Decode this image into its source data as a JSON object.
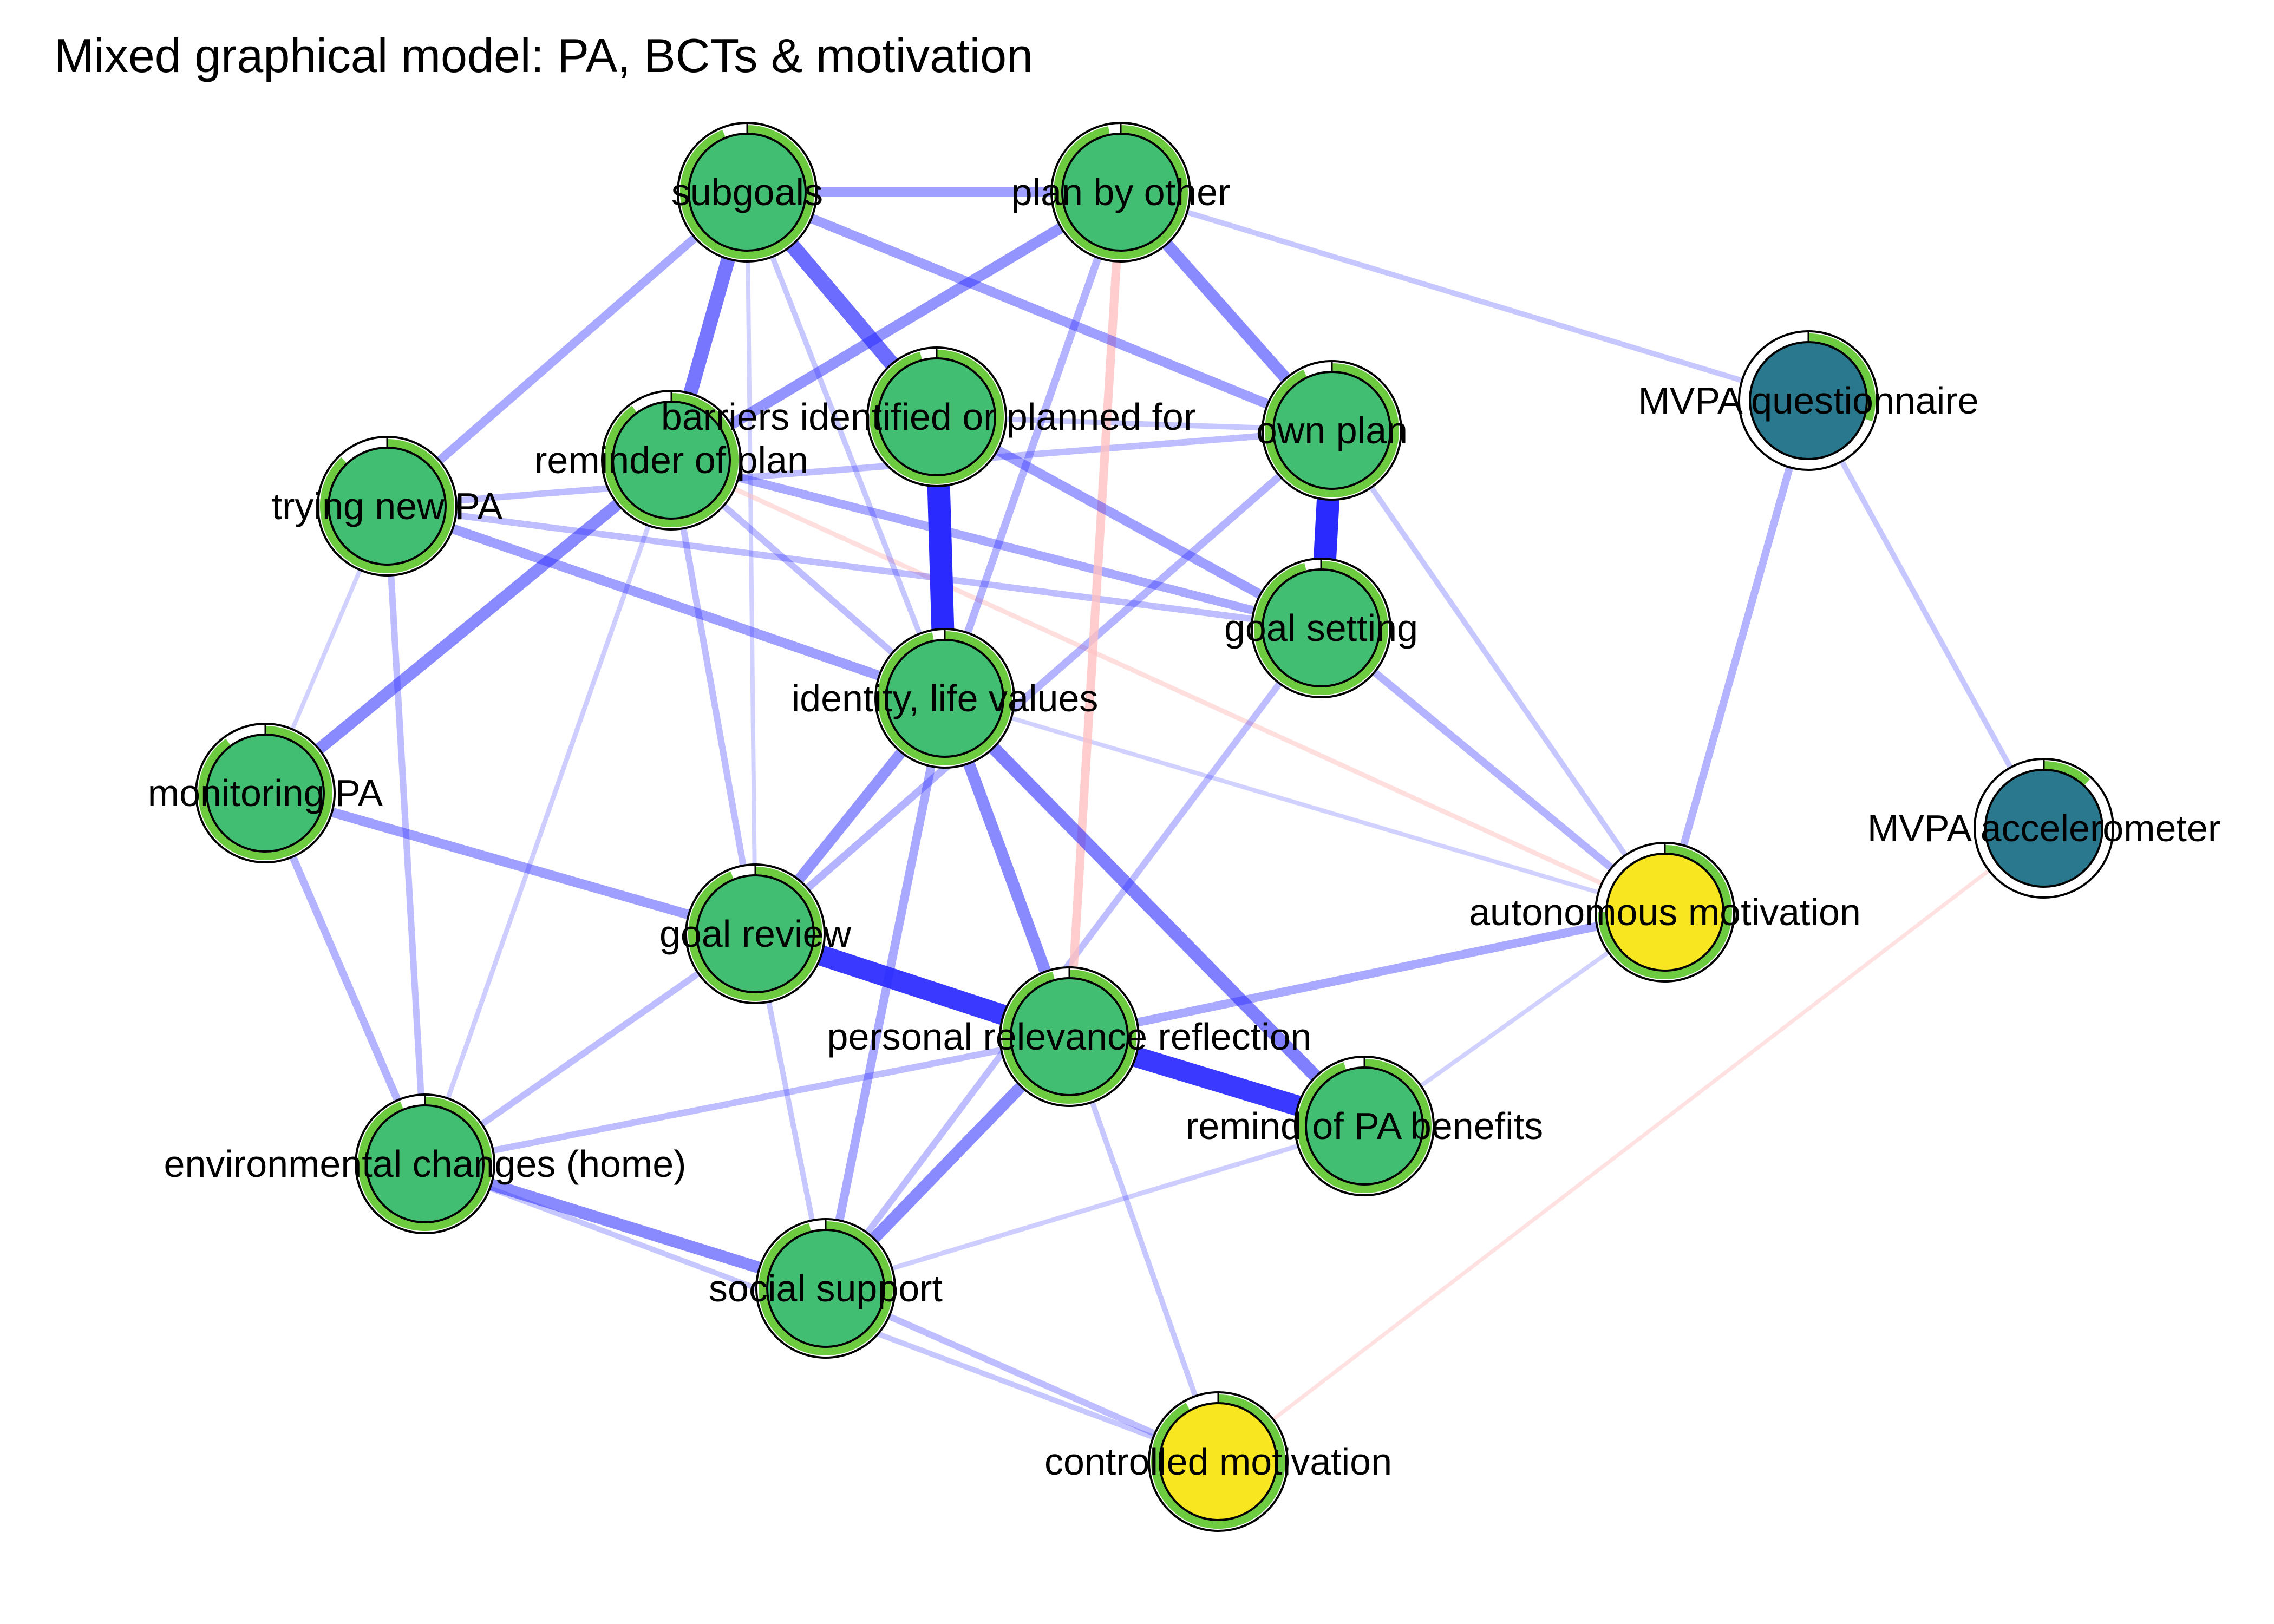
{
  "title": "Mixed graphical model: PA, BCTs & motivation",
  "colors": {
    "bct_node": "#41BE71",
    "motivation_node": "#F7E620",
    "mvpa_node": "#2A788E",
    "predictability_ring": "#6CCB3F",
    "positive_edge": "#2A2AFF",
    "negative_edge": "#FFC0C0"
  },
  "nodes": [
    {
      "id": "subgoals",
      "label": "subgoals",
      "group": "bct",
      "predictability": 0.94
    },
    {
      "id": "plan_by_other",
      "label": "plan by other",
      "group": "bct",
      "predictability": 0.97
    },
    {
      "id": "barriers",
      "label": "barriers identified or planned for",
      "group": "bct",
      "predictability": 0.96
    },
    {
      "id": "own_plan",
      "label": "own plan",
      "group": "bct",
      "predictability": 0.93
    },
    {
      "id": "reminder_of_plan",
      "label": "reminder of plan",
      "group": "bct",
      "predictability": 0.9
    },
    {
      "id": "trying_new_pa",
      "label": "trying new PA",
      "group": "bct",
      "predictability": 0.88
    },
    {
      "id": "goal_setting",
      "label": "goal setting",
      "group": "bct",
      "predictability": 0.96
    },
    {
      "id": "identity",
      "label": "identity, life values",
      "group": "bct",
      "predictability": 0.97
    },
    {
      "id": "monitoring_pa",
      "label": "monitoring PA",
      "group": "bct",
      "predictability": 0.9
    },
    {
      "id": "goal_review",
      "label": "goal review",
      "group": "bct",
      "predictability": 0.94
    },
    {
      "id": "personal_relevance",
      "label": "personal relevance reflection",
      "group": "bct",
      "predictability": 0.96
    },
    {
      "id": "remind_benefits",
      "label": "remind of PA benefits",
      "group": "bct",
      "predictability": 0.95
    },
    {
      "id": "env_changes",
      "label": "environmental changes (home)",
      "group": "bct",
      "predictability": 0.94
    },
    {
      "id": "social_support",
      "label": "social support",
      "group": "bct",
      "predictability": 0.96
    },
    {
      "id": "controlled_motivation",
      "label": "controlled motivation",
      "group": "motivation",
      "predictability": 0.92
    },
    {
      "id": "autonomous_motivation",
      "label": "autonomous motivation",
      "group": "motivation",
      "predictability": 0.75
    },
    {
      "id": "mvpa_questionnaire",
      "label": "MVPA questionnaire",
      "group": "mvpa",
      "predictability": 0.3
    },
    {
      "id": "mvpa_accelerometer",
      "label": "MVPA accelerometer",
      "group": "mvpa",
      "predictability": 0.12
    }
  ],
  "edges": [
    {
      "from": "goal_review",
      "to": "personal_relevance",
      "sign": "positive",
      "strength": 0.85
    },
    {
      "from": "personal_relevance",
      "to": "remind_benefits",
      "sign": "positive",
      "strength": 0.85
    },
    {
      "from": "own_plan",
      "to": "goal_setting",
      "sign": "positive",
      "strength": 0.95
    },
    {
      "from": "barriers",
      "to": "identity",
      "sign": "positive",
      "strength": 0.95
    },
    {
      "from": "subgoals",
      "to": "barriers",
      "sign": "positive",
      "strength": 0.6
    },
    {
      "from": "subgoals",
      "to": "reminder_of_plan",
      "sign": "positive",
      "strength": 0.55
    },
    {
      "from": "identity",
      "to": "remind_benefits",
      "sign": "positive",
      "strength": 0.5
    },
    {
      "from": "reminder_of_plan",
      "to": "monitoring_pa",
      "sign": "positive",
      "strength": 0.45
    },
    {
      "from": "plan_by_other",
      "to": "own_plan",
      "sign": "positive",
      "strength": 0.45
    },
    {
      "from": "env_changes",
      "to": "social_support",
      "sign": "positive",
      "strength": 0.45
    },
    {
      "from": "personal_relevance",
      "to": "social_support",
      "sign": "positive",
      "strength": 0.45
    },
    {
      "from": "identity",
      "to": "personal_relevance",
      "sign": "positive",
      "strength": 0.45
    },
    {
      "from": "subgoals",
      "to": "plan_by_other",
      "sign": "positive",
      "strength": 0.35
    },
    {
      "from": "plan_by_other",
      "to": "reminder_of_plan",
      "sign": "positive",
      "strength": 0.4
    },
    {
      "from": "subgoals",
      "to": "own_plan",
      "sign": "positive",
      "strength": 0.35
    },
    {
      "from": "trying_new_pa",
      "to": "identity",
      "sign": "positive",
      "strength": 0.35
    },
    {
      "from": "barriers",
      "to": "goal_setting",
      "sign": "positive",
      "strength": 0.35
    },
    {
      "from": "identity",
      "to": "goal_review",
      "sign": "positive",
      "strength": 0.4
    },
    {
      "from": "monitoring_pa",
      "to": "goal_review",
      "sign": "positive",
      "strength": 0.35
    },
    {
      "from": "personal_relevance",
      "to": "autonomous_motivation",
      "sign": "positive",
      "strength": 0.3
    },
    {
      "from": "reminder_of_plan",
      "to": "goal_setting",
      "sign": "positive",
      "strength": 0.3
    },
    {
      "from": "subgoals",
      "to": "trying_new_pa",
      "sign": "positive",
      "strength": 0.3
    },
    {
      "from": "identity",
      "to": "social_support",
      "sign": "positive",
      "strength": 0.3
    },
    {
      "from": "own_plan",
      "to": "goal_review",
      "sign": "positive",
      "strength": 0.25
    },
    {
      "from": "goal_setting",
      "to": "autonomous_motivation",
      "sign": "positive",
      "strength": 0.25
    },
    {
      "from": "mvpa_questionnaire",
      "to": "autonomous_motivation",
      "sign": "positive",
      "strength": 0.25
    },
    {
      "from": "mvpa_questionnaire",
      "to": "mvpa_accelerometer",
      "sign": "positive",
      "strength": 0.15
    },
    {
      "from": "plan_by_other",
      "to": "mvpa_questionnaire",
      "sign": "positive",
      "strength": 0.15
    },
    {
      "from": "plan_by_other",
      "to": "identity",
      "sign": "positive",
      "strength": 0.25
    },
    {
      "from": "plan_by_other",
      "to": "personal_relevance",
      "sign": "negative",
      "strength": 0.3
    },
    {
      "from": "trying_new_pa",
      "to": "own_plan",
      "sign": "positive",
      "strength": 0.2
    },
    {
      "from": "trying_new_pa",
      "to": "goal_setting",
      "sign": "positive",
      "strength": 0.2
    },
    {
      "from": "trying_new_pa",
      "to": "env_changes",
      "sign": "positive",
      "strength": 0.2
    },
    {
      "from": "trying_new_pa",
      "to": "monitoring_pa",
      "sign": "positive",
      "strength": 0.1
    },
    {
      "from": "monitoring_pa",
      "to": "env_changes",
      "sign": "positive",
      "strength": 0.25
    },
    {
      "from": "env_changes",
      "to": "goal_review",
      "sign": "positive",
      "strength": 0.2
    },
    {
      "from": "env_changes",
      "to": "personal_relevance",
      "sign": "positive",
      "strength": 0.2
    },
    {
      "from": "reminder_of_plan",
      "to": "goal_review",
      "sign": "positive",
      "strength": 0.2
    },
    {
      "from": "reminder_of_plan",
      "to": "env_changes",
      "sign": "positive",
      "strength": 0.12
    },
    {
      "from": "reminder_of_plan",
      "to": "autonomous_motivation",
      "sign": "negative",
      "strength": 0.12
    },
    {
      "from": "reminder_of_plan",
      "to": "identity",
      "sign": "positive",
      "strength": 0.2
    },
    {
      "from": "goal_setting",
      "to": "social_support",
      "sign": "positive",
      "strength": 0.2
    },
    {
      "from": "goal_review",
      "to": "social_support",
      "sign": "positive",
      "strength": 0.15
    },
    {
      "from": "social_support",
      "to": "controlled_motivation",
      "sign": "positive",
      "strength": 0.2
    },
    {
      "from": "env_changes",
      "to": "controlled_motivation",
      "sign": "positive",
      "strength": 0.15
    },
    {
      "from": "personal_relevance",
      "to": "controlled_motivation",
      "sign": "positive",
      "strength": 0.15
    },
    {
      "from": "social_support",
      "to": "remind_benefits",
      "sign": "positive",
      "strength": 0.12
    },
    {
      "from": "autonomous_motivation",
      "to": "remind_benefits",
      "sign": "positive",
      "strength": 0.1
    },
    {
      "from": "own_plan",
      "to": "autonomous_motivation",
      "sign": "positive",
      "strength": 0.15
    },
    {
      "from": "identity",
      "to": "autonomous_motivation",
      "sign": "positive",
      "strength": 0.1
    },
    {
      "from": "barriers",
      "to": "own_plan",
      "sign": "positive",
      "strength": 0.15
    },
    {
      "from": "subgoals",
      "to": "identity",
      "sign": "positive",
      "strength": 0.15
    },
    {
      "from": "subgoals",
      "to": "goal_review",
      "sign": "positive",
      "strength": 0.1
    },
    {
      "from": "mvpa_accelerometer",
      "to": "controlled_motivation",
      "sign": "negative",
      "strength": 0.08
    }
  ]
}
